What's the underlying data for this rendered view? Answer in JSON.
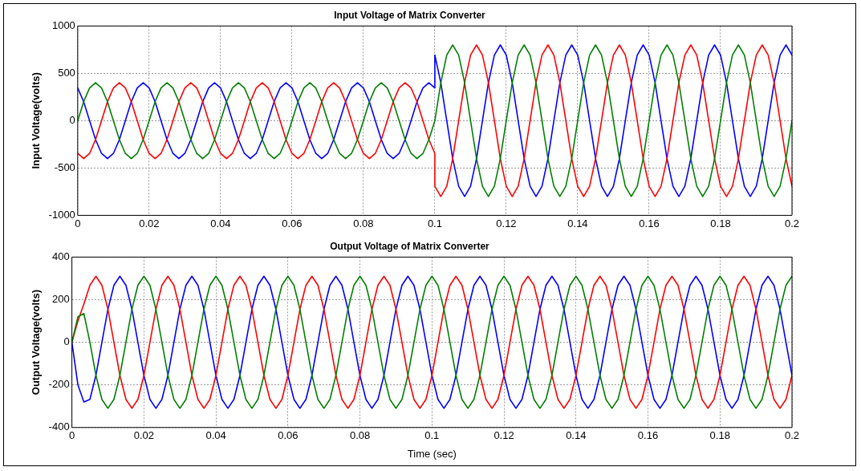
{
  "chart_data": [
    {
      "type": "line",
      "title": "Input Voltage of Matrix Converter",
      "ylabel": "Input Voltage(volts)",
      "x": [
        0,
        0.00167,
        0.00333,
        0.005,
        0.00667,
        0.00833,
        0.01,
        0.01167,
        0.01333,
        0.015,
        0.01667,
        0.01833,
        0.02,
        0.02167,
        0.02333,
        0.025,
        0.02667,
        0.02833,
        0.03,
        0.03167,
        0.03333,
        0.035,
        0.03667,
        0.03833,
        0.04,
        0.04167,
        0.04333,
        0.045,
        0.04667,
        0.04833,
        0.05,
        0.05167,
        0.05333,
        0.055,
        0.05667,
        0.05833,
        0.06,
        0.06167,
        0.06333,
        0.065,
        0.06667,
        0.06833,
        0.07,
        0.07167,
        0.07333,
        0.075,
        0.07667,
        0.07833,
        0.08,
        0.08167,
        0.08333,
        0.085,
        0.08667,
        0.08833,
        0.09,
        0.09167,
        0.09333,
        0.095,
        0.09667,
        0.09833,
        0.1,
        0.1,
        0.10167,
        0.10333,
        0.105,
        0.10667,
        0.10833,
        0.11,
        0.11167,
        0.11333,
        0.115,
        0.11667,
        0.11833,
        0.12,
        0.12167,
        0.12333,
        0.125,
        0.12667,
        0.12833,
        0.13,
        0.13167,
        0.13333,
        0.135,
        0.13667,
        0.13833,
        0.14,
        0.14167,
        0.14333,
        0.145,
        0.14667,
        0.14833,
        0.15,
        0.15167,
        0.15333,
        0.155,
        0.15667,
        0.15833,
        0.16,
        0.16167,
        0.16333,
        0.165,
        0.16667,
        0.16833,
        0.17,
        0.17167,
        0.17333,
        0.175,
        0.17667,
        0.17833,
        0.18,
        0.18167,
        0.18333,
        0.185,
        0.18667,
        0.18833,
        0.19,
        0.19167,
        0.19333,
        0.195,
        0.19667,
        0.19833,
        0.2
      ],
      "series": [
        {
          "color": "#008000",
          "values": [
            0,
            200,
            346,
            400,
            346,
            200,
            0,
            -200,
            -346,
            -400,
            -346,
            -200,
            0,
            200,
            346,
            400,
            346,
            200,
            0,
            -200,
            -346,
            -400,
            -346,
            -200,
            0,
            200,
            346,
            400,
            346,
            200,
            0,
            -200,
            -346,
            -400,
            -346,
            -200,
            0,
            200,
            346,
            400,
            346,
            200,
            0,
            -200,
            -346,
            -400,
            -346,
            -200,
            0,
            200,
            346,
            400,
            346,
            200,
            0,
            -200,
            -346,
            -400,
            -346,
            -200,
            0,
            0,
            400,
            693,
            800,
            693,
            400,
            0,
            -400,
            -693,
            -800,
            -693,
            -400,
            0,
            400,
            693,
            800,
            693,
            400,
            0,
            -400,
            -693,
            -800,
            -693,
            -400,
            0,
            400,
            693,
            800,
            693,
            400,
            0,
            -400,
            -693,
            -800,
            -693,
            -400,
            0,
            400,
            693,
            800,
            693,
            400,
            0,
            -400,
            -693,
            -800,
            -693,
            -400,
            0,
            400,
            693,
            800,
            693,
            400,
            0,
            -400,
            -693,
            -800,
            -693,
            -400,
            0
          ]
        },
        {
          "color": "#ff0000",
          "values": [
            -346,
            -400,
            -346,
            -200,
            0,
            200,
            346,
            400,
            346,
            200,
            0,
            -200,
            -346,
            -400,
            -346,
            -200,
            0,
            200,
            346,
            400,
            346,
            200,
            0,
            -200,
            -346,
            -400,
            -346,
            -200,
            0,
            200,
            346,
            400,
            346,
            200,
            0,
            -200,
            -346,
            -400,
            -346,
            -200,
            0,
            200,
            346,
            400,
            346,
            200,
            0,
            -200,
            -346,
            -400,
            -346,
            -200,
            0,
            200,
            346,
            400,
            346,
            200,
            0,
            -200,
            -346,
            -693,
            -800,
            -693,
            -400,
            0,
            400,
            693,
            800,
            693,
            400,
            0,
            -400,
            -693,
            -800,
            -693,
            -400,
            0,
            400,
            693,
            800,
            693,
            400,
            0,
            -400,
            -693,
            -800,
            -693,
            -400,
            0,
            400,
            693,
            800,
            693,
            400,
            0,
            -400,
            -693,
            -800,
            -693,
            -400,
            0,
            400,
            693,
            800,
            693,
            400,
            0,
            -400,
            -693,
            -800,
            -693,
            -400,
            0,
            400,
            693,
            800,
            693,
            400,
            0,
            -400,
            -693
          ]
        },
        {
          "color": "#0000ff",
          "values": [
            346,
            200,
            0,
            -200,
            -346,
            -400,
            -346,
            -200,
            0,
            200,
            346,
            400,
            346,
            200,
            0,
            -200,
            -346,
            -400,
            -346,
            -200,
            0,
            200,
            346,
            400,
            346,
            200,
            0,
            -200,
            -346,
            -400,
            -346,
            -200,
            0,
            200,
            346,
            400,
            346,
            200,
            0,
            -200,
            -346,
            -400,
            -346,
            -200,
            0,
            200,
            346,
            400,
            346,
            200,
            0,
            -200,
            -346,
            -400,
            -346,
            -200,
            0,
            200,
            346,
            400,
            346,
            693,
            400,
            0,
            -400,
            -693,
            -800,
            -693,
            -400,
            0,
            400,
            693,
            800,
            693,
            400,
            0,
            -400,
            -693,
            -800,
            -693,
            -400,
            0,
            400,
            693,
            800,
            693,
            400,
            0,
            -400,
            -693,
            -800,
            -693,
            -400,
            0,
            400,
            693,
            800,
            693,
            400,
            0,
            -400,
            -693,
            -800,
            -693,
            -400,
            0,
            400,
            693,
            800,
            693,
            400,
            0,
            -400,
            -693,
            -800,
            -693,
            -400,
            0,
            400,
            693,
            800,
            693
          ]
        }
      ],
      "xlim": [
        0,
        0.2
      ],
      "xticks": [
        0,
        0.02,
        0.04,
        0.06,
        0.08,
        0.1,
        0.12,
        0.14,
        0.16,
        0.18,
        0.2
      ],
      "ylim": [
        -1000,
        1000
      ],
      "yticks": [
        -1000,
        -500,
        0,
        500,
        1000
      ],
      "grid": true,
      "legend": false,
      "marker": "none",
      "line_style": "solid"
    },
    {
      "type": "line",
      "title": "Output Voltage of Matrix Converter",
      "xlabel": "Time (sec)",
      "ylabel": "Output Voltage(volts)",
      "x": [
        0,
        0.00167,
        0.00333,
        0.005,
        0.00667,
        0.00833,
        0.01,
        0.01167,
        0.01333,
        0.015,
        0.01667,
        0.01833,
        0.02,
        0.02167,
        0.02333,
        0.025,
        0.02667,
        0.02833,
        0.03,
        0.03167,
        0.03333,
        0.035,
        0.03667,
        0.03833,
        0.04,
        0.04167,
        0.04333,
        0.045,
        0.04667,
        0.04833,
        0.05,
        0.05167,
        0.05333,
        0.055,
        0.05667,
        0.05833,
        0.06,
        0.06167,
        0.06333,
        0.065,
        0.06667,
        0.06833,
        0.07,
        0.07167,
        0.07333,
        0.075,
        0.07667,
        0.07833,
        0.08,
        0.08167,
        0.08333,
        0.085,
        0.08667,
        0.08833,
        0.09,
        0.09167,
        0.09333,
        0.095,
        0.09667,
        0.09833,
        0.1,
        0.10167,
        0.10333,
        0.105,
        0.10667,
        0.10833,
        0.11,
        0.11167,
        0.11333,
        0.115,
        0.11667,
        0.11833,
        0.12,
        0.12167,
        0.12333,
        0.125,
        0.12667,
        0.12833,
        0.13,
        0.13167,
        0.13333,
        0.135,
        0.13667,
        0.13833,
        0.14,
        0.14167,
        0.14333,
        0.145,
        0.14667,
        0.14833,
        0.15,
        0.15167,
        0.15333,
        0.155,
        0.15667,
        0.15833,
        0.16,
        0.16167,
        0.16333,
        0.165,
        0.16667,
        0.16833,
        0.17,
        0.17167,
        0.17333,
        0.175,
        0.17667,
        0.17833,
        0.18,
        0.18167,
        0.18333,
        0.185,
        0.18667,
        0.18833,
        0.19,
        0.19167,
        0.19333,
        0.195,
        0.19667,
        0.19833,
        0.2
      ],
      "series": [
        {
          "color": "#008000",
          "values": [
            0,
            120,
            135,
            0,
            -155,
            -268,
            -310,
            -268,
            -155,
            0,
            155,
            268,
            310,
            268,
            155,
            0,
            -155,
            -268,
            -310,
            -268,
            -155,
            0,
            155,
            268,
            310,
            268,
            155,
            0,
            -155,
            -268,
            -310,
            -268,
            -155,
            0,
            155,
            268,
            310,
            268,
            155,
            0,
            -155,
            -268,
            -310,
            -268,
            -155,
            0,
            155,
            268,
            310,
            268,
            155,
            0,
            -155,
            -268,
            -310,
            -268,
            -155,
            0,
            155,
            268,
            310,
            268,
            155,
            0,
            -155,
            -268,
            -310,
            -268,
            -155,
            0,
            155,
            268,
            310,
            268,
            155,
            0,
            -155,
            -268,
            -310,
            -268,
            -155,
            0,
            155,
            268,
            310,
            268,
            155,
            0,
            -155,
            -268,
            -310,
            -268,
            -155,
            0,
            155,
            268,
            310,
            268,
            155,
            0,
            -155,
            -268,
            -310,
            -268,
            -155,
            0,
            155,
            268,
            310,
            268,
            155,
            0,
            -155,
            -268,
            -310,
            -268,
            -155,
            0,
            155,
            268,
            310
          ]
        },
        {
          "color": "#ff0000",
          "values": [
            0,
            100,
            180,
            268,
            310,
            268,
            155,
            0,
            -155,
            -268,
            -310,
            -268,
            -155,
            0,
            155,
            268,
            310,
            268,
            155,
            0,
            -155,
            -268,
            -310,
            -268,
            -155,
            0,
            155,
            268,
            310,
            268,
            155,
            0,
            -155,
            -268,
            -310,
            -268,
            -155,
            0,
            155,
            268,
            310,
            268,
            155,
            0,
            -155,
            -268,
            -310,
            -268,
            -155,
            0,
            155,
            268,
            310,
            268,
            155,
            0,
            -155,
            -268,
            -310,
            -268,
            -155,
            0,
            155,
            268,
            310,
            268,
            155,
            0,
            -155,
            -268,
            -310,
            -268,
            -155,
            0,
            155,
            268,
            310,
            268,
            155,
            0,
            -155,
            -268,
            -310,
            -268,
            -155,
            0,
            155,
            268,
            310,
            268,
            155,
            0,
            -155,
            -268,
            -310,
            -268,
            -155,
            0,
            155,
            268,
            310,
            268,
            155,
            0,
            -155,
            -268,
            -310,
            -268,
            -155,
            0,
            155,
            268,
            310,
            268,
            155,
            0,
            -155,
            -268,
            -310,
            -268,
            -155
          ]
        },
        {
          "color": "#0000ff",
          "values": [
            0,
            -200,
            -280,
            -268,
            -155,
            0,
            155,
            268,
            310,
            268,
            155,
            0,
            -155,
            -268,
            -310,
            -268,
            -155,
            0,
            155,
            268,
            310,
            268,
            155,
            0,
            -155,
            -268,
            -310,
            -268,
            -155,
            0,
            155,
            268,
            310,
            268,
            155,
            0,
            -155,
            -268,
            -310,
            -268,
            -155,
            0,
            155,
            268,
            310,
            268,
            155,
            0,
            -155,
            -268,
            -310,
            -268,
            -155,
            0,
            155,
            268,
            310,
            268,
            155,
            0,
            -155,
            -268,
            -310,
            -268,
            -155,
            0,
            155,
            268,
            310,
            268,
            155,
            0,
            -155,
            -268,
            -310,
            -268,
            -155,
            0,
            155,
            268,
            310,
            268,
            155,
            0,
            -155,
            -268,
            -310,
            -268,
            -155,
            0,
            155,
            268,
            310,
            268,
            155,
            0,
            -155,
            -268,
            -310,
            -268,
            -155,
            0,
            155,
            268,
            310,
            268,
            155,
            0,
            -155,
            -268,
            -310,
            -268,
            -155,
            0,
            155,
            268,
            310,
            268,
            155,
            0,
            -155
          ]
        }
      ],
      "xlim": [
        0,
        0.2
      ],
      "xticks": [
        0,
        0.02,
        0.04,
        0.06,
        0.08,
        0.1,
        0.12,
        0.14,
        0.16,
        0.18,
        0.2
      ],
      "ylim": [
        -400,
        400
      ],
      "yticks": [
        -400,
        -200,
        0,
        200,
        400
      ],
      "grid": true,
      "legend": false,
      "marker": "none",
      "line_style": "solid"
    }
  ]
}
